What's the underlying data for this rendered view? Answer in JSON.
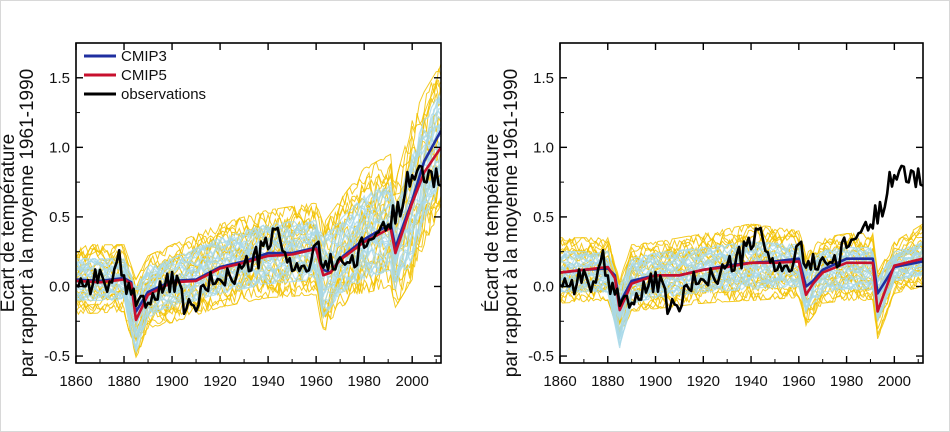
{
  "figure": {
    "background": "#ffffff",
    "colors": {
      "cmip3_mean": "#1f2fa0",
      "cmip5_mean": "#c8102e",
      "observations": "#000000",
      "cmip3_runs": "#a8d8e8",
      "cmip5_runs": "#f2c200"
    }
  },
  "chart_data": [
    {
      "type": "line",
      "panel": "left",
      "title": "",
      "xlabel": "",
      "ylabel_line1": "Écart de température",
      "ylabel_line2": "par rapport à la moyenne 1961-1990",
      "xlim": [
        1860,
        2012
      ],
      "ylim": [
        -0.55,
        1.75
      ],
      "xticks": [
        1860,
        1880,
        1900,
        1920,
        1940,
        1960,
        1980,
        2000
      ],
      "yticks": [
        -0.5,
        0.0,
        0.5,
        1.0,
        1.5
      ],
      "ytick_labels": [
        "-0.5",
        "0.0",
        "0.5",
        "1.0",
        "1.5"
      ],
      "legend": {
        "placement": "top-left",
        "entries": [
          {
            "label": "CMIP3",
            "color": "#1f2fa0"
          },
          {
            "label": "CMIP5",
            "color": "#c8102e"
          },
          {
            "label": "observations",
            "color": "#000000"
          }
        ]
      },
      "series": [
        {
          "name": "CMIP3",
          "color": "#1f2fa0",
          "x": [
            1860,
            1870,
            1880,
            1883,
            1885,
            1890,
            1900,
            1910,
            1920,
            1930,
            1940,
            1950,
            1960,
            1963,
            1966,
            1970,
            1980,
            1991,
            1993,
            2000,
            2005,
            2012
          ],
          "values": [
            0.05,
            0.04,
            0.06,
            0.03,
            -0.18,
            -0.04,
            0.04,
            0.05,
            0.14,
            0.18,
            0.24,
            0.24,
            0.28,
            0.12,
            0.1,
            0.2,
            0.34,
            0.45,
            0.28,
            0.62,
            0.9,
            1.12
          ]
        },
        {
          "name": "CMIP5",
          "color": "#c8102e",
          "x": [
            1860,
            1870,
            1880,
            1883,
            1885,
            1890,
            1900,
            1910,
            1920,
            1930,
            1940,
            1950,
            1960,
            1963,
            1966,
            1970,
            1980,
            1991,
            1993,
            2000,
            2005,
            2012
          ],
          "values": [
            0.04,
            0.03,
            0.05,
            0.02,
            -0.24,
            -0.06,
            0.03,
            0.04,
            0.13,
            0.17,
            0.22,
            0.23,
            0.27,
            0.08,
            0.1,
            0.19,
            0.32,
            0.42,
            0.24,
            0.6,
            0.82,
            1.0
          ]
        },
        {
          "name": "observations",
          "color": "#000000",
          "x": [
            1860,
            1865,
            1870,
            1875,
            1878,
            1880,
            1885,
            1890,
            1895,
            1900,
            1905,
            1908,
            1910,
            1915,
            1920,
            1925,
            1930,
            1935,
            1940,
            1944,
            1945,
            1950,
            1955,
            1960,
            1965,
            1970,
            1975,
            1980,
            1985,
            1990,
            1995,
            1998,
            2000,
            2005,
            2010,
            2012
          ],
          "values": [
            0.05,
            0.02,
            0.08,
            0.0,
            0.18,
            0.0,
            -0.05,
            -0.12,
            -0.05,
            0.06,
            -0.12,
            -0.18,
            -0.12,
            0.0,
            0.1,
            0.05,
            0.14,
            0.2,
            0.3,
            0.4,
            0.28,
            0.18,
            0.1,
            0.26,
            0.14,
            0.22,
            0.14,
            0.3,
            0.38,
            0.45,
            0.58,
            0.82,
            0.78,
            0.8,
            0.8,
            0.8
          ]
        }
      ],
      "ensemble_bands": {
        "x": [
          1860,
          1880,
          1885,
          1890,
          1900,
          1920,
          1940,
          1960,
          1963,
          1970,
          1980,
          1991,
          1993,
          2000,
          2005,
          2012
        ],
        "cmip5_upper": [
          0.3,
          0.3,
          0.05,
          0.22,
          0.3,
          0.45,
          0.55,
          0.6,
          0.45,
          0.62,
          0.85,
          0.95,
          0.75,
          1.2,
          1.4,
          1.6
        ],
        "cmip5_lower": [
          -0.2,
          -0.18,
          -0.52,
          -0.3,
          -0.26,
          -0.15,
          -0.08,
          -0.06,
          -0.35,
          -0.15,
          -0.05,
          0.0,
          -0.15,
          0.05,
          0.3,
          0.55
        ],
        "cmip3_upper": [
          0.2,
          0.2,
          0.0,
          0.15,
          0.2,
          0.35,
          0.45,
          0.48,
          0.35,
          0.48,
          0.65,
          0.75,
          0.55,
          0.95,
          1.2,
          1.4
        ],
        "cmip3_lower": [
          -0.1,
          -0.1,
          -0.48,
          -0.22,
          -0.15,
          -0.05,
          0.02,
          0.05,
          -0.22,
          -0.05,
          0.05,
          0.12,
          -0.05,
          0.2,
          0.48,
          0.72
        ]
      }
    },
    {
      "type": "line",
      "panel": "right",
      "title": "",
      "xlabel": "",
      "ylabel_line1": "Écart de température",
      "ylabel_line2": "par rapport à la moyenne 1961-1990",
      "xlim": [
        1860,
        2012
      ],
      "ylim": [
        -0.55,
        1.75
      ],
      "xticks": [
        1860,
        1880,
        1900,
        1920,
        1940,
        1960,
        1980,
        2000
      ],
      "yticks": [
        -0.5,
        0.0,
        0.5,
        1.0,
        1.5
      ],
      "ytick_labels": [
        "-0.5",
        "0.0",
        "0.5",
        "1.0",
        "1.5"
      ],
      "series": [
        {
          "name": "CMIP3",
          "color": "#1f2fa0",
          "x": [
            1860,
            1870,
            1880,
            1883,
            1885,
            1890,
            1900,
            1910,
            1920,
            1930,
            1940,
            1950,
            1960,
            1963,
            1966,
            1970,
            1980,
            1991,
            1993,
            2000,
            2012
          ],
          "values": [
            0.1,
            0.12,
            0.13,
            0.08,
            -0.12,
            0.04,
            0.08,
            0.08,
            0.12,
            0.15,
            0.17,
            0.18,
            0.2,
            0.0,
            0.04,
            0.12,
            0.2,
            0.2,
            -0.05,
            0.14,
            0.18
          ]
        },
        {
          "name": "CMIP5",
          "color": "#c8102e",
          "x": [
            1860,
            1870,
            1880,
            1883,
            1885,
            1890,
            1900,
            1910,
            1920,
            1930,
            1940,
            1950,
            1960,
            1963,
            1966,
            1970,
            1980,
            1991,
            1993,
            2000,
            2012
          ],
          "values": [
            0.1,
            0.12,
            0.14,
            0.06,
            -0.17,
            0.02,
            0.08,
            0.08,
            0.12,
            0.14,
            0.17,
            0.17,
            0.18,
            -0.06,
            0.02,
            0.1,
            0.17,
            0.17,
            -0.18,
            0.15,
            0.2
          ]
        },
        {
          "name": "observations",
          "color": "#000000",
          "x": [
            1860,
            1865,
            1870,
            1875,
            1878,
            1880,
            1885,
            1890,
            1895,
            1900,
            1905,
            1908,
            1910,
            1915,
            1920,
            1925,
            1930,
            1935,
            1940,
            1944,
            1945,
            1950,
            1955,
            1960,
            1965,
            1970,
            1975,
            1980,
            1985,
            1990,
            1995,
            1998,
            2000,
            2005,
            2010,
            2012
          ],
          "values": [
            0.05,
            0.02,
            0.08,
            0.0,
            0.18,
            0.0,
            -0.05,
            -0.12,
            -0.05,
            0.06,
            -0.12,
            -0.18,
            -0.12,
            0.0,
            0.1,
            0.05,
            0.14,
            0.2,
            0.3,
            0.4,
            0.28,
            0.18,
            0.1,
            0.26,
            0.14,
            0.22,
            0.14,
            0.3,
            0.38,
            0.45,
            0.58,
            0.82,
            0.78,
            0.8,
            0.8,
            0.8
          ]
        }
      ],
      "ensemble_bands": {
        "x": [
          1860,
          1880,
          1885,
          1890,
          1900,
          1920,
          1940,
          1960,
          1963,
          1970,
          1980,
          1991,
          1993,
          2000,
          2012
        ],
        "cmip5_upper": [
          0.35,
          0.35,
          0.05,
          0.3,
          0.32,
          0.38,
          0.45,
          0.4,
          0.25,
          0.35,
          0.38,
          0.38,
          0.1,
          0.32,
          0.45
        ],
        "cmip5_lower": [
          -0.12,
          -0.1,
          -0.35,
          -0.18,
          -0.16,
          -0.12,
          -0.1,
          -0.08,
          -0.28,
          -0.12,
          -0.1,
          -0.1,
          -0.38,
          -0.05,
          0.0
        ],
        "cmip3_upper": [
          0.25,
          0.25,
          0.0,
          0.2,
          0.24,
          0.28,
          0.32,
          0.3,
          0.15,
          0.26,
          0.28,
          0.28,
          0.05,
          0.25,
          0.32
        ],
        "cmip3_lower": [
          -0.04,
          -0.04,
          -0.45,
          -0.12,
          -0.08,
          -0.04,
          -0.02,
          0.0,
          -0.2,
          -0.04,
          -0.02,
          -0.02,
          -0.25,
          0.04,
          0.08
        ]
      }
    }
  ]
}
